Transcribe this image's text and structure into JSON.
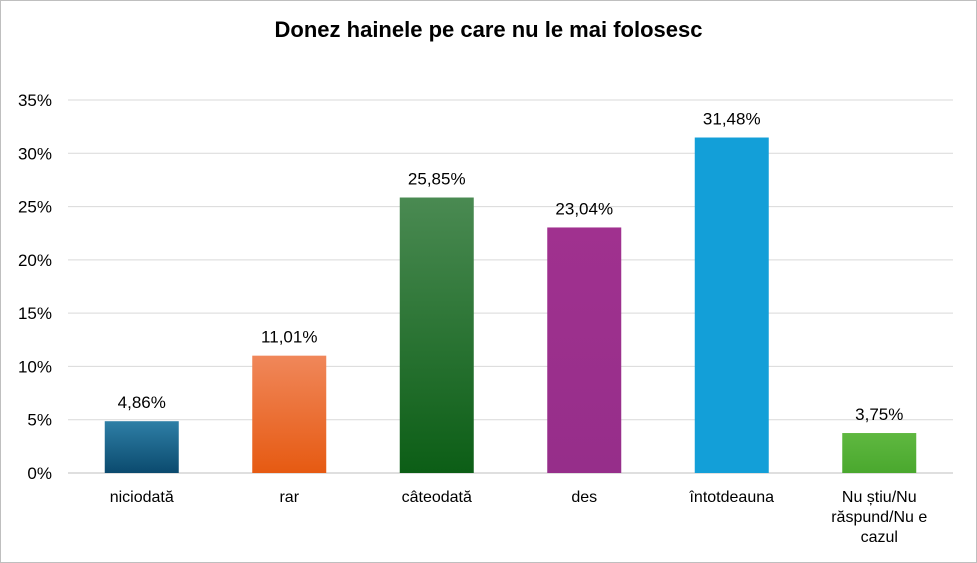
{
  "chart_data": {
    "type": "bar",
    "title": "Donez hainele pe care nu le mai folosesc",
    "xlabel": "",
    "ylabel": "",
    "categories": [
      "niciodată",
      "rar",
      "câteodată",
      "des",
      "întotdeauna",
      "Nu știu/Nu răspund/Nu e cazul"
    ],
    "category_lines": [
      [
        "niciodată"
      ],
      [
        "rar"
      ],
      [
        "câteodată"
      ],
      [
        "des"
      ],
      [
        "întotdeauna"
      ],
      [
        "Nu știu/Nu",
        "răspund/Nu e",
        "cazul"
      ]
    ],
    "values": [
      4.86,
      11.01,
      25.85,
      23.04,
      31.48,
      3.75
    ],
    "data_labels": [
      "4,86%",
      "11,01%",
      "25,85%",
      "23,04%",
      "31,48%",
      "3,75%"
    ],
    "ylim": [
      0,
      35
    ],
    "yticks": [
      0,
      5,
      10,
      15,
      20,
      25,
      30,
      35
    ],
    "ytick_labels": [
      "0%",
      "5%",
      "10%",
      "15%",
      "20%",
      "25%",
      "30%",
      "35%"
    ],
    "grid": true,
    "legend": "none",
    "colors": [
      [
        "#2e7fa6",
        "#0b4a6e"
      ],
      [
        "#f0875a",
        "#e65a12"
      ],
      [
        "#4a8a52",
        "#0c5e16"
      ],
      [
        "#a0318f",
        "#962e8a"
      ],
      [
        "#139fd8",
        "#139fd8"
      ],
      [
        "#5fb840",
        "#4aa82e"
      ]
    ]
  }
}
